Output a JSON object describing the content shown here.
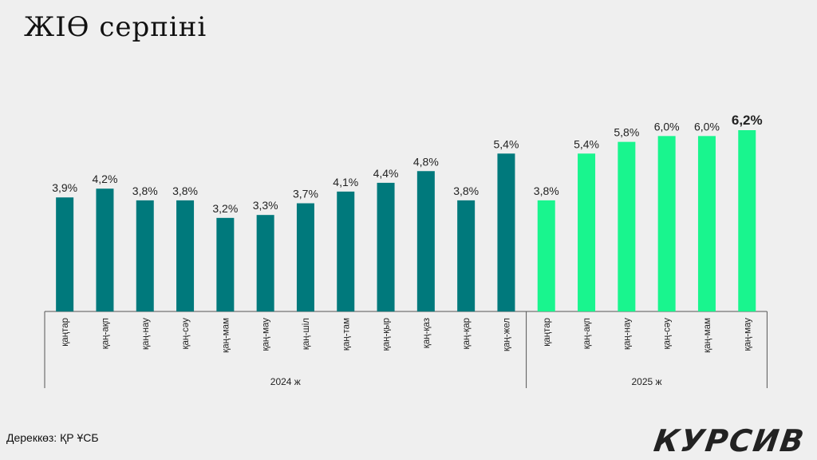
{
  "title": "ЖІӨ серпіні",
  "source": "Дереккөз: ҚР ҰСБ",
  "logo": "КУРСИВ",
  "colors": {
    "bar_2024": "#00797c",
    "bar_2025": "#19f58e",
    "text": "#222222",
    "axis": "#555555"
  },
  "chart_data": {
    "type": "bar",
    "title": "ЖІӨ серпіні",
    "categories": [
      "қаңтар",
      "қаң-ақп",
      "қаң-нау",
      "қаң-сәу",
      "қаң-мам",
      "қаң-мау",
      "қаң-шіл",
      "қаң-там",
      "қаң-қыр",
      "қаң-қаз",
      "қаң-қар",
      "қаң-жел",
      "қаңтар",
      "қаң-ақп",
      "қаң-нау",
      "қаң-сәу",
      "қаң-мам",
      "қаң-мау"
    ],
    "groups": [
      {
        "label": "2024 ж",
        "start": 0,
        "end": 11
      },
      {
        "label": "2025 ж",
        "start": 12,
        "end": 17
      }
    ],
    "values": [
      3.9,
      4.2,
      3.8,
      3.8,
      3.2,
      3.3,
      3.7,
      4.1,
      4.4,
      4.8,
      3.8,
      5.4,
      3.8,
      5.4,
      5.8,
      6.0,
      6.0,
      6.2
    ],
    "labels": [
      "3,9%",
      "4,2%",
      "3,8%",
      "3,8%",
      "3,2%",
      "3,3%",
      "3,7%",
      "4,1%",
      "4,4%",
      "4,8%",
      "3,8%",
      "5,4%",
      "3,8%",
      "5,4%",
      "5,8%",
      "6,0%",
      "6,0%",
      "6,2%"
    ],
    "highlight_last": true,
    "ylim": [
      0,
      6.2
    ],
    "grid": false,
    "xlabel": "",
    "ylabel": ""
  }
}
